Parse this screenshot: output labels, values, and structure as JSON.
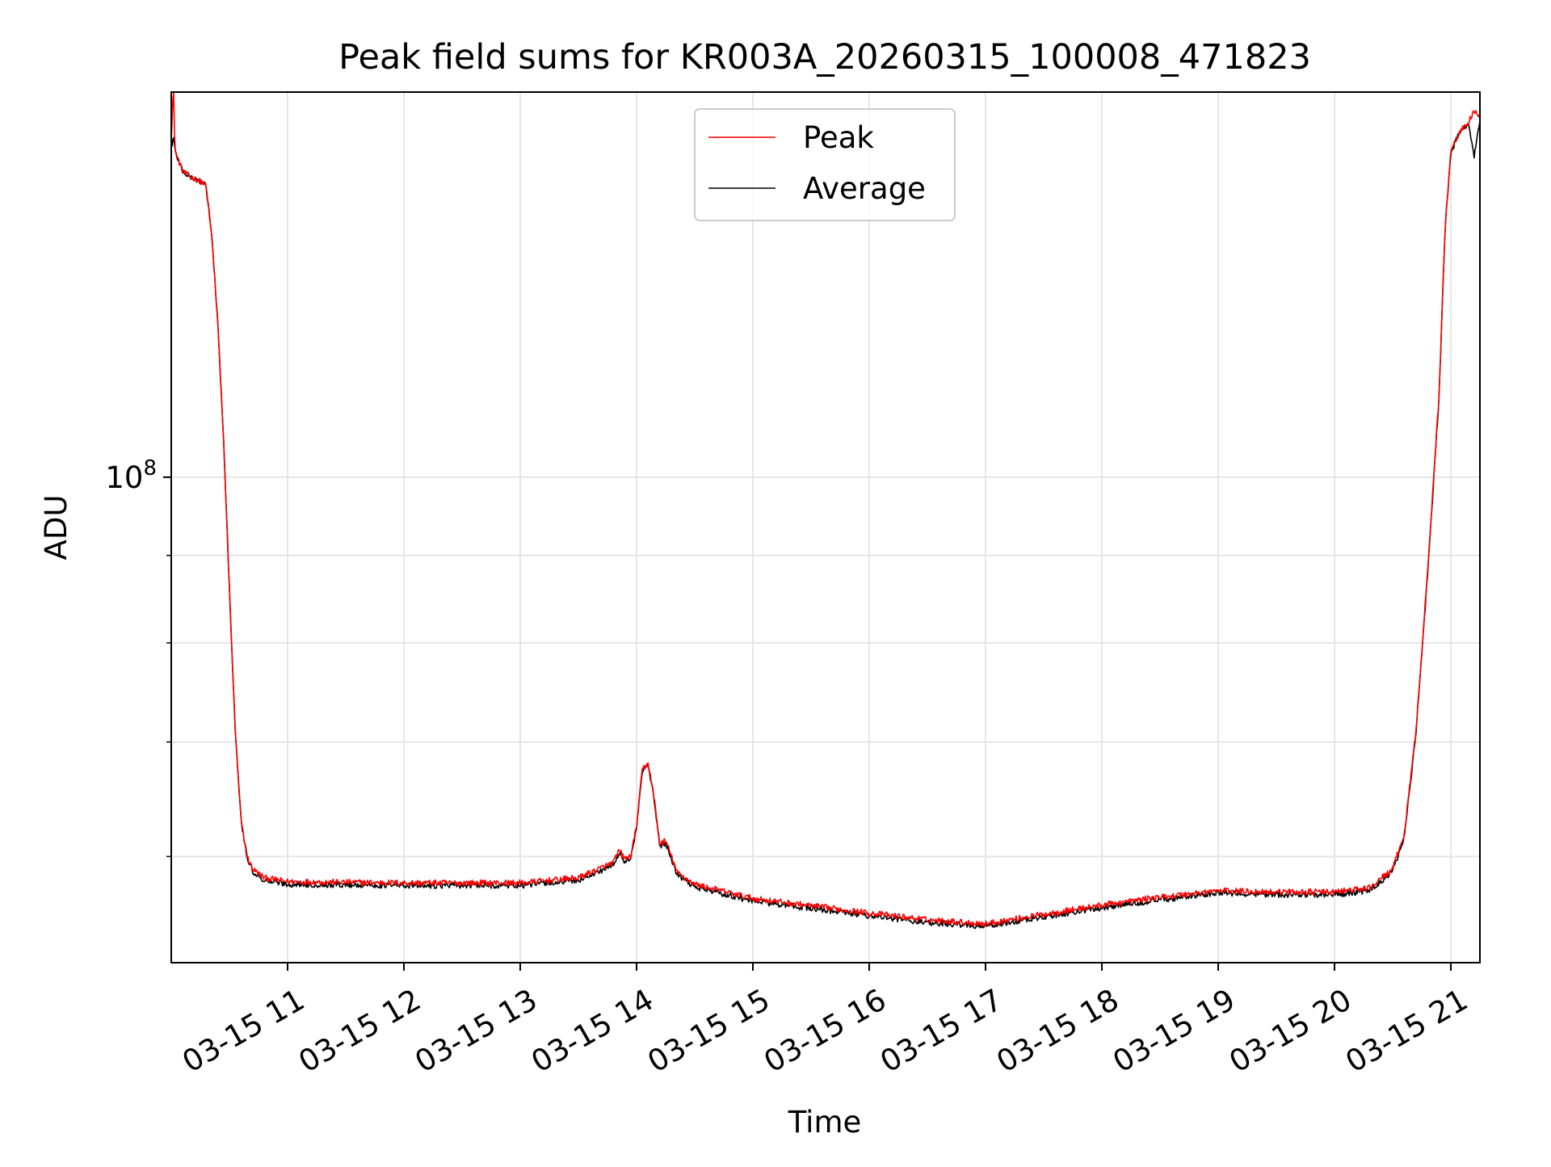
{
  "chart_data": {
    "type": "line",
    "title": "Peak field sums for KR003A_20260315_100008_471823",
    "xlabel": "Time",
    "ylabel": "ADU",
    "y_scale": "log",
    "ylim": [
      52000000,
      168000000
    ],
    "xlim_hours": [
      10.0,
      21.25
    ],
    "grid": true,
    "legend_position": "upper center",
    "colors": {
      "peak": "#ff0000",
      "average": "#000000",
      "grid": "#e6e6e6",
      "axes": "#000000",
      "legend_border": "#cccccc"
    },
    "x_ticks": [
      {
        "value": 11,
        "label": "03-15 11"
      },
      {
        "value": 12,
        "label": "03-15 12"
      },
      {
        "value": 13,
        "label": "03-15 13"
      },
      {
        "value": 14,
        "label": "03-15 14"
      },
      {
        "value": 15,
        "label": "03-15 15"
      },
      {
        "value": 16,
        "label": "03-15 16"
      },
      {
        "value": 17,
        "label": "03-15 17"
      },
      {
        "value": 18,
        "label": "03-15 18"
      },
      {
        "value": 19,
        "label": "03-15 19"
      },
      {
        "value": 20,
        "label": "03-15 20"
      },
      {
        "value": 21,
        "label": "03-15 21"
      }
    ],
    "y_major_ticks": [
      {
        "value": 100000000,
        "base": "10",
        "exp": "8"
      }
    ],
    "y_minor_ticks": [
      60000000,
      70000000,
      80000000,
      90000000
    ],
    "series": [
      {
        "name": "Peak",
        "color": "#ff0000",
        "x": [
          10.0,
          10.02,
          10.03,
          10.05,
          10.1,
          10.15,
          10.2,
          10.25,
          10.3,
          10.35,
          10.4,
          10.45,
          10.5,
          10.55,
          10.6,
          10.65,
          10.7,
          10.8,
          11.0,
          12.0,
          13.0,
          13.5,
          13.8,
          13.85,
          13.9,
          13.95,
          14.0,
          14.05,
          14.1,
          14.15,
          14.2,
          14.25,
          14.3,
          14.35,
          14.5,
          15.0,
          16.0,
          16.5,
          17.0,
          17.5,
          18.0,
          18.5,
          19.0,
          19.5,
          20.0,
          20.3,
          20.5,
          20.6,
          20.7,
          20.8,
          20.9,
          20.95,
          21.0,
          21.05,
          21.1,
          21.15,
          21.2,
          21.25
        ],
        "y": [
          158000000,
          170000000,
          156000000,
          154000000,
          151000000,
          150000000,
          149500000,
          149000000,
          148000000,
          138000000,
          123000000,
          105000000,
          86000000,
          71000000,
          63000000,
          60000000,
          59000000,
          58300000,
          58000000,
          57900000,
          57900000,
          58300000,
          59500000,
          60500000,
          59800000,
          60000000,
          62500000,
          67500000,
          68000000,
          65000000,
          61000000,
          61300000,
          60000000,
          58700000,
          57800000,
          56700000,
          55600000,
          55100000,
          54800000,
          55500000,
          56200000,
          56800000,
          57300000,
          57200000,
          57200000,
          57500000,
          59000000,
          61800000,
          71000000,
          88000000,
          112000000,
          140000000,
          155000000,
          158000000,
          160000000,
          161000000,
          164000000,
          162000000
        ]
      },
      {
        "name": "Average",
        "color": "#000000",
        "x": [
          10.0,
          10.02,
          10.03,
          10.05,
          10.1,
          10.15,
          10.2,
          10.25,
          10.3,
          10.35,
          10.4,
          10.45,
          10.5,
          10.55,
          10.6,
          10.65,
          10.7,
          10.8,
          11.0,
          12.0,
          13.0,
          13.5,
          13.8,
          13.85,
          13.9,
          13.95,
          14.0,
          14.05,
          14.1,
          14.15,
          14.2,
          14.25,
          14.3,
          14.35,
          14.5,
          15.0,
          16.0,
          16.5,
          17.0,
          17.5,
          18.0,
          18.5,
          19.0,
          19.5,
          20.0,
          20.3,
          20.5,
          20.6,
          20.7,
          20.8,
          20.9,
          20.95,
          21.0,
          21.05,
          21.1,
          21.15,
          21.2,
          21.25
        ],
        "y": [
          156000000,
          158000000,
          155500000,
          154000000,
          151000000,
          150000000,
          149500000,
          149000000,
          148000000,
          138000000,
          123000000,
          105000000,
          86000000,
          71000000,
          63000000,
          60000000,
          58800000,
          58100000,
          57800000,
          57700000,
          57700000,
          58100000,
          59300000,
          60300000,
          59600000,
          59800000,
          62300000,
          67300000,
          67800000,
          64800000,
          60800000,
          61100000,
          59800000,
          58500000,
          57600000,
          56500000,
          55400000,
          54900000,
          54600000,
          55300000,
          56000000,
          56600000,
          57100000,
          57000000,
          57000000,
          57300000,
          58800000,
          61600000,
          70800000,
          87800000,
          111800000,
          139800000,
          154800000,
          157800000,
          159800000,
          160800000,
          154000000,
          161500000
        ]
      }
    ]
  }
}
